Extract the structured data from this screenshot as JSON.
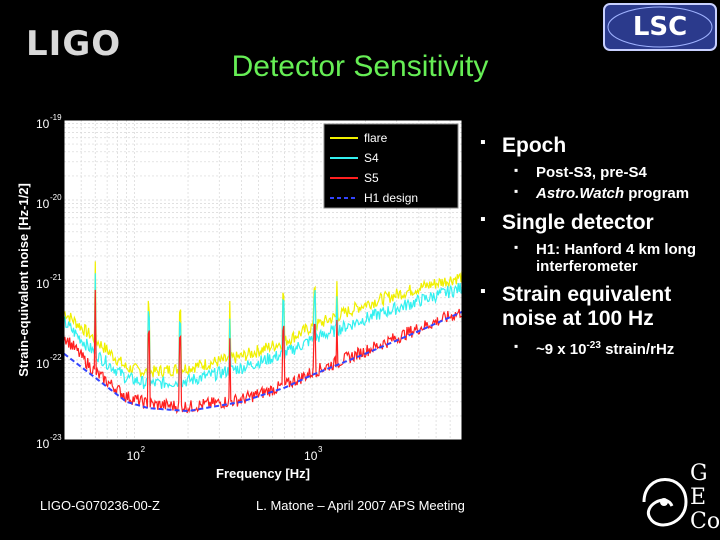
{
  "header": {
    "ligo_logo_text": "LIGO",
    "lsc_logo_text": "LSC",
    "title": "Detector Sensitivity"
  },
  "chart_data": {
    "type": "line",
    "xlabel": "Frequency [Hz]",
    "ylabel": "Strain-equivalent noise [Hz-1/2]",
    "x_scale": "log",
    "y_scale": "log",
    "xlim": [
      40,
      7000
    ],
    "ylim": [
      1e-23,
      1e-19
    ],
    "x_ticks": [
      {
        "value": 100,
        "label": "10",
        "exp": "2"
      },
      {
        "value": 1000,
        "label": "10",
        "exp": "3"
      }
    ],
    "y_ticks": [
      {
        "value": 1e-19,
        "label": "10",
        "exp": "-19"
      },
      {
        "value": 1e-20,
        "label": "10",
        "exp": "-20"
      },
      {
        "value": 1e-21,
        "label": "10",
        "exp": "-21"
      },
      {
        "value": 1e-22,
        "label": "10",
        "exp": "-22"
      },
      {
        "value": 1e-23,
        "label": "10",
        "exp": "-23"
      }
    ],
    "grid": true,
    "legend_position": "top-right",
    "series": [
      {
        "name": "flare",
        "color": "#f0f000",
        "x": [
          40,
          60,
          90,
          120,
          200,
          400,
          700,
          1000,
          2000,
          4000,
          7000
        ],
        "y": [
          4e-22,
          1.8e-22,
          8e-23,
          7e-23,
          8e-23,
          1.1e-22,
          1.7e-22,
          2.6e-22,
          5e-22,
          8e-22,
          1.1e-21
        ]
      },
      {
        "name": "S4",
        "color": "#33f0f0",
        "x": [
          40,
          60,
          90,
          120,
          200,
          400,
          700,
          1000,
          2000,
          4000,
          7000
        ],
        "y": [
          3e-22,
          1.2e-22,
          6e-23,
          5e-23,
          5.5e-23,
          8e-23,
          1.2e-22,
          1.8e-22,
          3.3e-22,
          5.5e-22,
          8e-22
        ]
      },
      {
        "name": "S5",
        "color": "#ff2020",
        "x": [
          40,
          60,
          90,
          120,
          200,
          400,
          700,
          1000,
          2000,
          4000,
          7000
        ],
        "y": [
          2e-22,
          7e-23,
          3.5e-23,
          2.8e-23,
          2.6e-23,
          3.2e-23,
          4.8e-23,
          7e-23,
          1.3e-22,
          2.5e-22,
          4e-22
        ]
      },
      {
        "name": "H1 design",
        "color": "#3344ff",
        "dashed": true,
        "x": [
          40,
          60,
          90,
          120,
          200,
          400,
          700,
          1000,
          2000,
          4000,
          7000
        ],
        "y": [
          1.2e-22,
          6e-23,
          3e-23,
          2.5e-23,
          2.3e-23,
          3e-23,
          4.5e-23,
          6.5e-23,
          1.2e-22,
          2.3e-22,
          4e-22
        ]
      }
    ]
  },
  "bullets": [
    {
      "label": "Epoch",
      "subs": [
        {
          "text": "Post-S3, pre-S4"
        },
        {
          "text": "Astro.Watch",
          "italic": true,
          "suffix": " program"
        }
      ]
    },
    {
      "label": "Single detector",
      "subs": [
        {
          "text": "H1: Hanford 4 km long",
          "text2": "interferometer"
        }
      ]
    },
    {
      "label": "Strain equivalent",
      "label2": "noise at 100 Hz",
      "subs": [
        {
          "text": "~9 x 10",
          "sup": "-23",
          "suffix": " strain/rHz"
        }
      ]
    }
  ],
  "footer": {
    "doc_id": "LIGO-G070236-00-Z",
    "talk": "L. Matone – April 2007 APS Meeting"
  },
  "geo_logo_letters": [
    "G",
    "E",
    "Co"
  ]
}
